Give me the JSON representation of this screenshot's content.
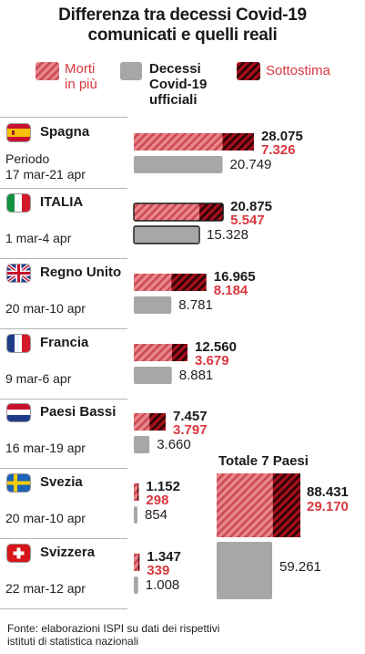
{
  "title_line1": "Differenza tra decessi Covid-19",
  "title_line2": "comunicati e quelli reali",
  "legend": {
    "excess_line1": "Morti",
    "excess_line2": "in più",
    "official_line1": "Decessi",
    "official_line2": "Covid-19",
    "official_line3": "ufficiali",
    "under": "Sottostima"
  },
  "colors": {
    "excess_fill": "#e8858b",
    "excess_stripe": "#c9474f",
    "under_fill": "#a50f1c",
    "under_stripe": "#2a0306",
    "official_fill": "#a7a7a7",
    "red_text": "#d9383f"
  },
  "chart_data": {
    "type": "bar",
    "title": "Differenza tra decessi Covid-19 comunicati e quelli reali",
    "countries": [
      {
        "name": "Spagna",
        "period_label": "Periodo",
        "period": "17 mar-21 apr",
        "excess": 28075,
        "excess_label": "28.075",
        "under": 7326,
        "under_label": "7.326",
        "official": 20749,
        "official_label": "20.749",
        "flag": "spain-flag-icon"
      },
      {
        "name": "ITALIA",
        "period_label": "",
        "period": "1 mar-4 apr",
        "excess": 20875,
        "excess_label": "20.875",
        "under": 5547,
        "under_label": "5.547",
        "official": 15328,
        "official_label": "15.328",
        "flag": "italy-flag-icon"
      },
      {
        "name": "Regno Unito",
        "period_label": "",
        "period": "20 mar-10 apr",
        "excess": 16965,
        "excess_label": "16.965",
        "under": 8184,
        "under_label": "8.184",
        "official": 8781,
        "official_label": "8.781",
        "flag": "uk-flag-icon"
      },
      {
        "name": "Francia",
        "period_label": "",
        "period": "9 mar-6 apr",
        "excess": 12560,
        "excess_label": "12.560",
        "under": 3679,
        "under_label": "3.679",
        "official": 8881,
        "official_label": "8.881",
        "flag": "france-flag-icon"
      },
      {
        "name": "Paesi Bassi",
        "period_label": "",
        "period": "16 mar-19 apr",
        "excess": 7457,
        "excess_label": "7.457",
        "under": 3797,
        "under_label": "3.797",
        "official": 3660,
        "official_label": "3.660",
        "flag": "netherlands-flag-icon"
      },
      {
        "name": "Svezia",
        "period_label": "",
        "period": "20 mar-10 apr",
        "excess": 1152,
        "excess_label": "1.152",
        "under": 298,
        "under_label": "298",
        "official": 854,
        "official_label": "854",
        "flag": "sweden-flag-icon"
      },
      {
        "name": "Svizzera",
        "period_label": "",
        "period": "22 mar-12 apr",
        "excess": 1347,
        "excess_label": "1.347",
        "under": 339,
        "under_label": "339",
        "official": 1008,
        "official_label": "1.008",
        "flag": "switzerland-flag-icon"
      }
    ],
    "total": {
      "label": "Totale 7 Paesi",
      "excess": 88431,
      "excess_label": "88.431",
      "under": 29170,
      "under_label": "29.170",
      "official": 59261,
      "official_label": "59.261"
    },
    "source": "Fonte: elaborazioni ISPI su dati dei rispettivi istituti di statistica nazionali"
  },
  "footer_line1": "Fonte: elaborazioni ISPI su dati dei rispettivi",
  "footer_line2": "istituti di statistica nazionali"
}
